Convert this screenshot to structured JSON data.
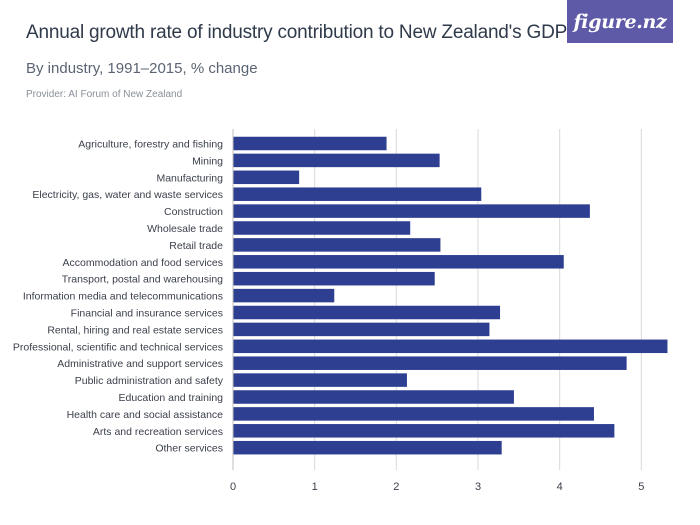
{
  "header": {
    "title": "Annual growth rate of industry contribution to New Zealand's GDP",
    "subtitle": "By industry, 1991–2015, % change",
    "provider": "Provider: AI Forum of New Zealand",
    "logo_text": "figure.nz"
  },
  "colors": {
    "bar": "#2e3f91",
    "grid": "#d9d9d9",
    "axis_text": "#3a3f4a",
    "logo_bg": "#5e5aa8"
  },
  "chart_data": {
    "type": "bar",
    "orientation": "horizontal",
    "title": "Annual growth rate of industry contribution to New Zealand's GDP",
    "subtitle": "By industry, 1991–2015, % change",
    "xlabel": "",
    "ylabel": "",
    "xlim": [
      0,
      5.4
    ],
    "xticks": [
      0,
      1,
      2,
      3,
      4,
      5
    ],
    "grid": true,
    "categories": [
      "Agriculture, forestry and fishing",
      "Mining",
      "Manufacturing",
      "Electricity, gas, water and waste services",
      "Construction",
      "Wholesale trade",
      "Retail trade",
      "Accommodation and food services",
      "Transport, postal and warehousing",
      "Information media and telecommunications",
      "Financial and insurance services",
      "Rental, hiring and real estate services",
      "Professional, scientific and technical services",
      "Administrative and support services",
      "Public administration and safety",
      "Education and training",
      "Health care and social assistance",
      "Arts and recreation services",
      "Other services"
    ],
    "values": [
      1.88,
      2.53,
      0.81,
      3.04,
      4.37,
      2.17,
      2.54,
      4.05,
      2.47,
      1.24,
      3.27,
      3.14,
      5.32,
      4.82,
      2.13,
      3.44,
      4.42,
      4.67,
      3.29
    ]
  }
}
